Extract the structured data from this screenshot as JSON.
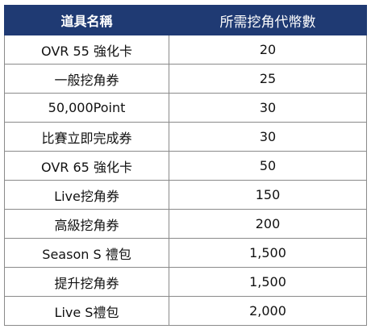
{
  "table": {
    "headers": [
      "道具名稱",
      "所需挖角代幣數"
    ],
    "rows": [
      {
        "item": "OVR 55 強化卡",
        "tokens": "20"
      },
      {
        "item": "一般挖角券",
        "tokens": "25"
      },
      {
        "item": "50,000Point",
        "tokens": "30"
      },
      {
        "item": "比賽立即完成券",
        "tokens": "30"
      },
      {
        "item": "OVR 65 強化卡",
        "tokens": "50"
      },
      {
        "item": "Live挖角券",
        "tokens": "150"
      },
      {
        "item": "高級挖角券",
        "tokens": "200"
      },
      {
        "item": "Season S 禮包",
        "tokens": "1,500"
      },
      {
        "item": "提升挖角券",
        "tokens": "1,500"
      },
      {
        "item": "Live S禮包",
        "tokens": "2,000"
      }
    ]
  },
  "colors": {
    "header_bg": "#1f3a73",
    "header_text": "#ffffff",
    "border": "#8a8a8a"
  }
}
